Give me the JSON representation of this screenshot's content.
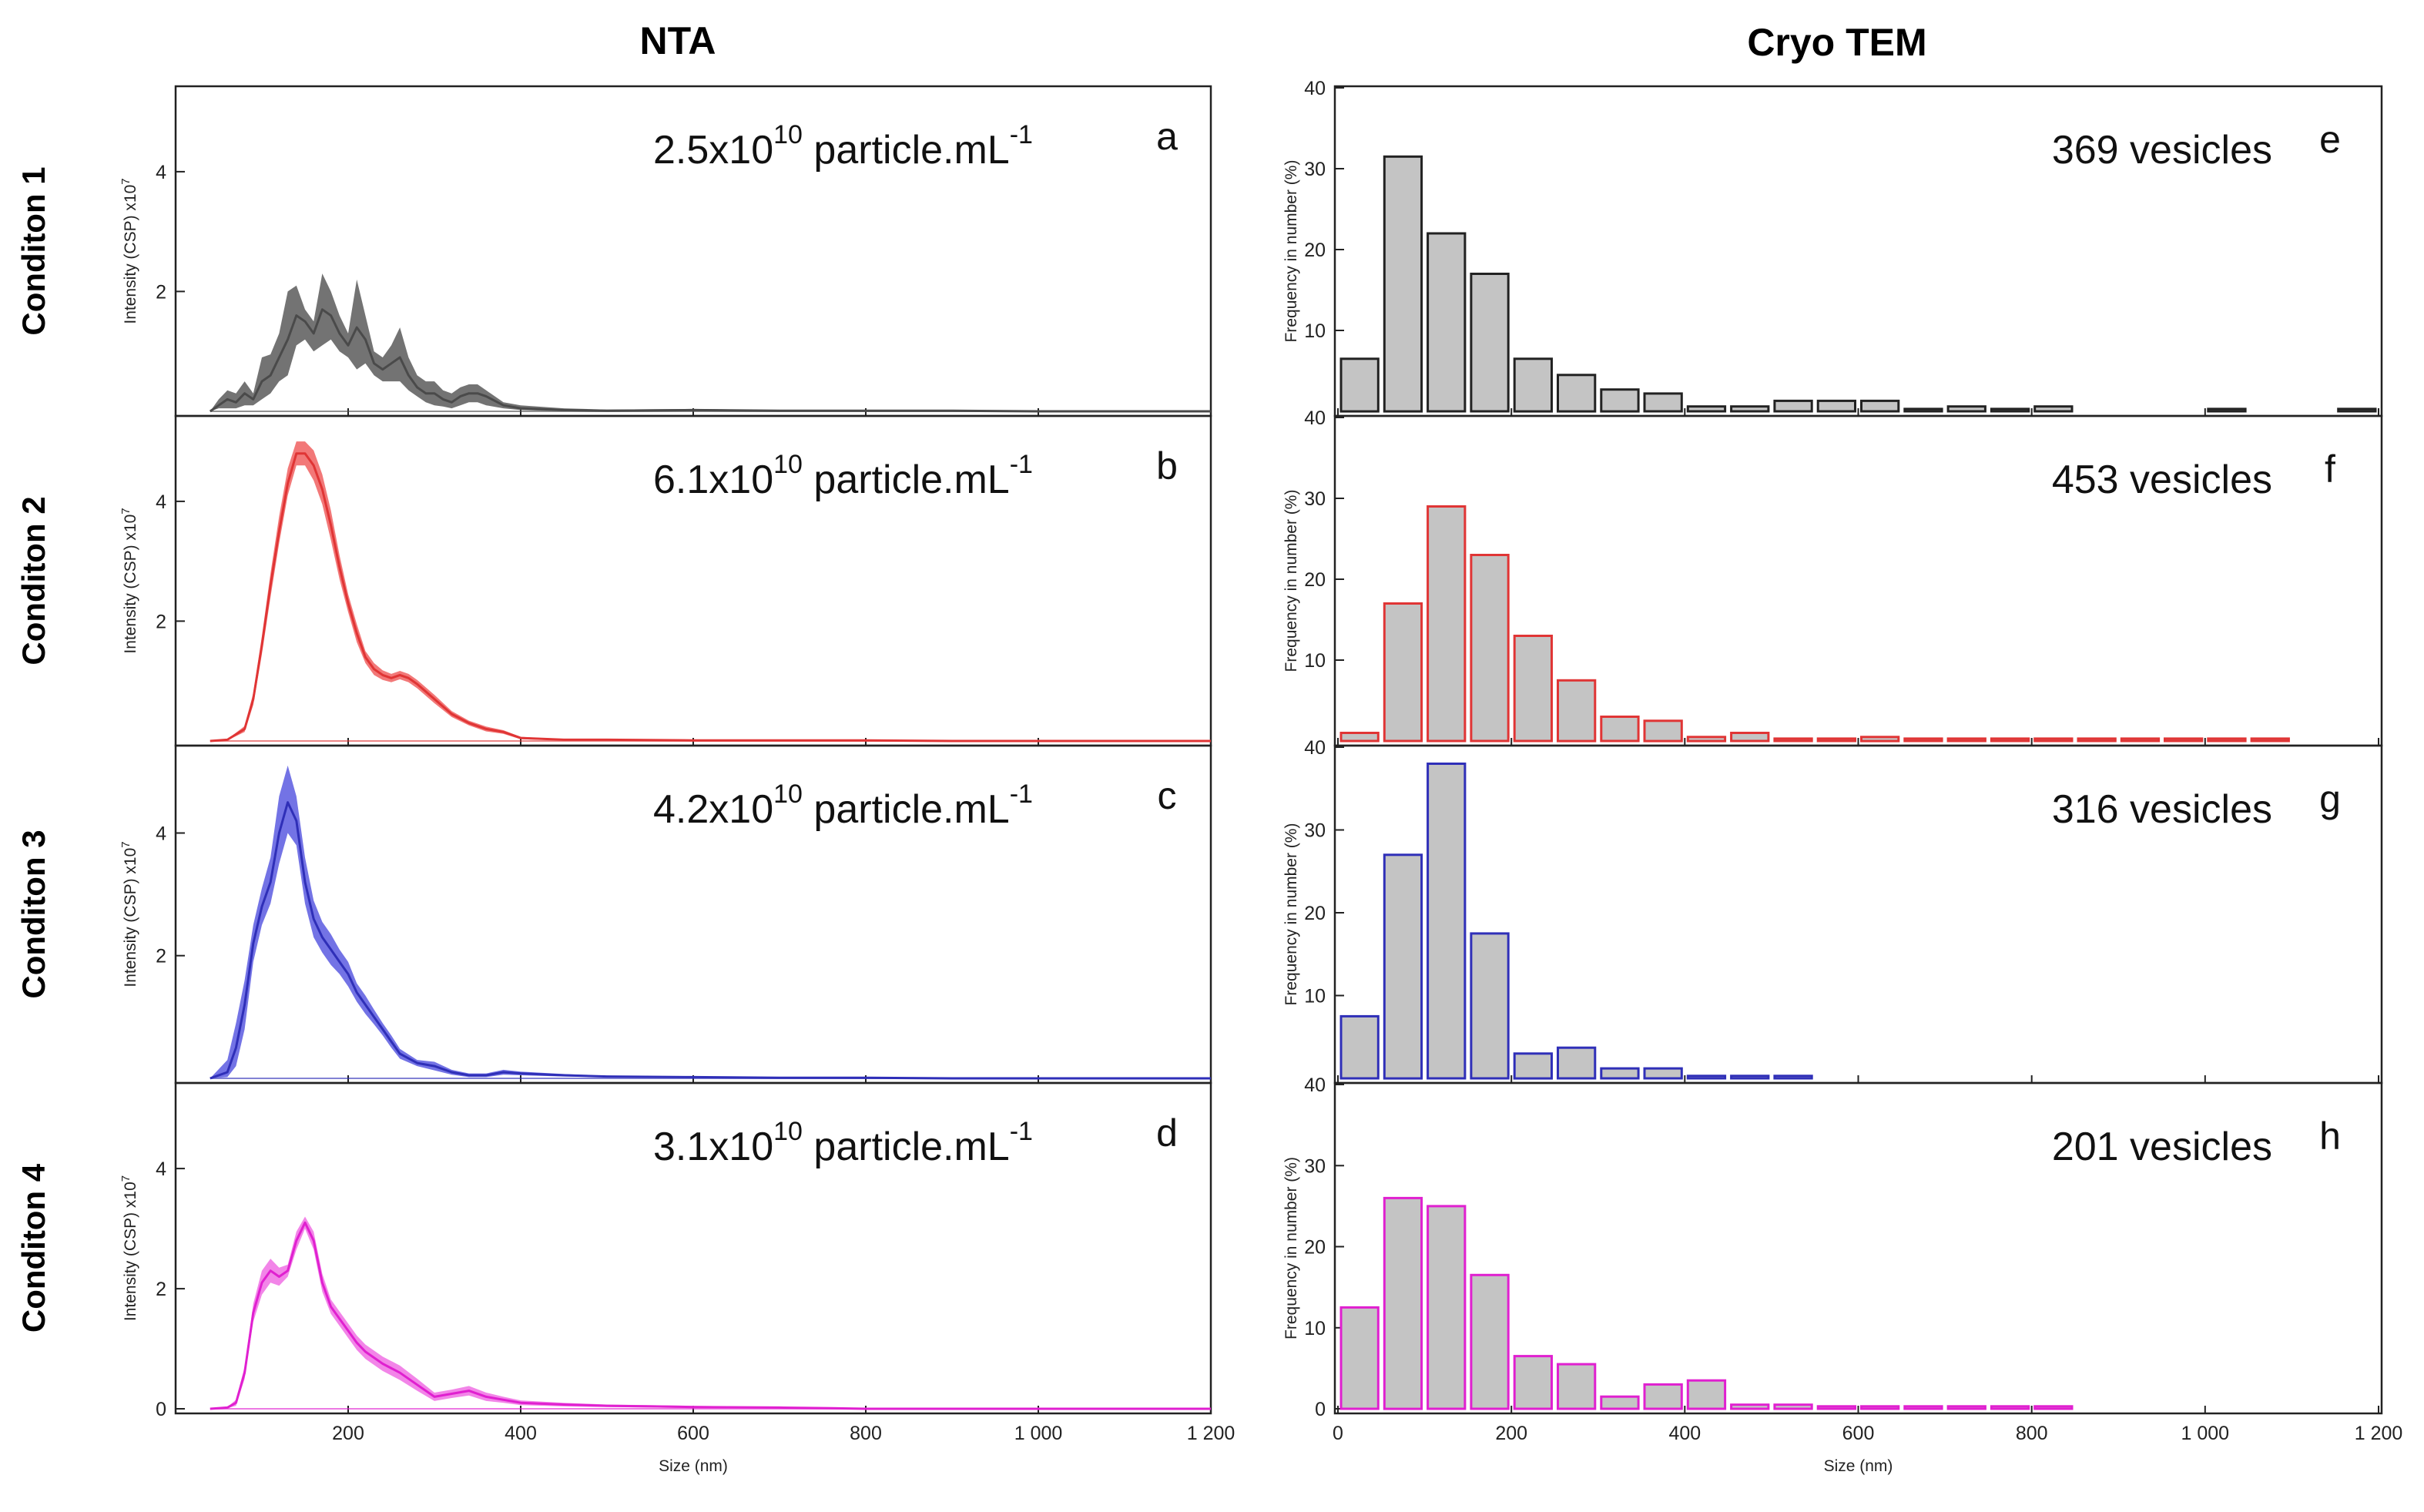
{
  "figure": {
    "col_titles": {
      "left": "NTA",
      "right": "Cryo TEM"
    },
    "row_labels": [
      "Conditon 1",
      "Conditon 2",
      "Conditon 3",
      "Conditon 4"
    ]
  },
  "chart_data": [
    {
      "type": "area",
      "panel": "a",
      "condition": "Conditon 1",
      "series_name": "NTA",
      "color": "#4a4a4a",
      "band_color": "#5a5a5a",
      "annotation": {
        "prefix": "2.5x10",
        "exponent": "10",
        "suffix": " particle.mL",
        "unit_exponent": "-1"
      },
      "xlabel": "Size (nm)",
      "ylabel": "Intensity (CSP) x10",
      "ylabel_exponent": "7",
      "xlim": [
        0,
        1200
      ],
      "ylim": [
        0,
        5.4
      ],
      "xticks": [
        200,
        400,
        600,
        800,
        1000,
        1200
      ],
      "xtick_labels": [
        "200",
        "400",
        "600",
        "800",
        "1 000",
        "1 200"
      ],
      "yticks": [
        2,
        4
      ],
      "ytick_labels": [
        "2",
        "4"
      ],
      "x": [
        40,
        50,
        60,
        70,
        80,
        90,
        100,
        110,
        120,
        130,
        140,
        150,
        160,
        170,
        180,
        190,
        200,
        210,
        220,
        230,
        240,
        250,
        260,
        270,
        280,
        290,
        300,
        310,
        320,
        330,
        340,
        350,
        360,
        380,
        400,
        450,
        500,
        600,
        700,
        800,
        900,
        1000,
        1200
      ],
      "y": [
        0,
        0.1,
        0.2,
        0.15,
        0.3,
        0.2,
        0.5,
        0.6,
        0.9,
        1.2,
        1.6,
        1.5,
        1.3,
        1.7,
        1.6,
        1.3,
        1.1,
        1.4,
        1.2,
        0.8,
        0.7,
        0.8,
        0.9,
        0.6,
        0.4,
        0.3,
        0.3,
        0.2,
        0.15,
        0.25,
        0.3,
        0.3,
        0.25,
        0.1,
        0.05,
        0.02,
        0.01,
        0.02,
        0.01,
        0.01,
        0.01,
        0,
        0
      ],
      "y_upper": [
        0,
        0.2,
        0.35,
        0.3,
        0.5,
        0.3,
        0.9,
        0.95,
        1.3,
        2.0,
        2.1,
        1.7,
        1.5,
        2.3,
        2.0,
        1.6,
        1.3,
        2.2,
        1.6,
        1.0,
        0.9,
        1.1,
        1.4,
        0.9,
        0.6,
        0.5,
        0.5,
        0.35,
        0.3,
        0.4,
        0.45,
        0.45,
        0.35,
        0.15,
        0.1,
        0.05,
        0.03,
        0.04,
        0.02,
        0.02,
        0.02,
        0.01,
        0
      ],
      "y_lower": [
        0,
        0.05,
        0.05,
        0.05,
        0.1,
        0.1,
        0.2,
        0.3,
        0.5,
        0.6,
        1.1,
        1.2,
        1.0,
        1.1,
        1.2,
        1.0,
        0.9,
        0.7,
        0.8,
        0.6,
        0.5,
        0.5,
        0.5,
        0.35,
        0.25,
        0.15,
        0.1,
        0.08,
        0.05,
        0.1,
        0.15,
        0.15,
        0.1,
        0.05,
        0.02,
        0,
        0,
        0,
        0,
        0,
        0,
        0,
        0
      ]
    },
    {
      "type": "area",
      "panel": "b",
      "condition": "Conditon 2",
      "series_name": "NTA",
      "color": "#e03535",
      "band_color": "#f06060",
      "annotation": {
        "prefix": "6.1x10",
        "exponent": "10",
        "suffix": " particle.mL",
        "unit_exponent": "-1"
      },
      "xlabel": "Size (nm)",
      "ylabel": "Intensity (CSP) x10",
      "ylabel_exponent": "7",
      "xlim": [
        0,
        1200
      ],
      "ylim": [
        0,
        5.4
      ],
      "xticks": [
        200,
        400,
        600,
        800,
        1000,
        1200
      ],
      "xtick_labels": [
        "200",
        "400",
        "600",
        "800",
        "1 000",
        "1 200"
      ],
      "yticks": [
        2,
        4
      ],
      "ytick_labels": [
        "2",
        "4"
      ],
      "x": [
        40,
        60,
        80,
        90,
        100,
        110,
        120,
        130,
        140,
        150,
        160,
        170,
        180,
        190,
        200,
        210,
        220,
        230,
        240,
        250,
        260,
        270,
        280,
        300,
        320,
        340,
        360,
        380,
        400,
        450,
        500,
        600,
        700,
        800,
        900,
        1000,
        1200
      ],
      "y": [
        0,
        0.02,
        0.2,
        0.7,
        1.6,
        2.6,
        3.5,
        4.3,
        4.8,
        4.8,
        4.6,
        4.2,
        3.6,
        2.9,
        2.3,
        1.8,
        1.4,
        1.2,
        1.1,
        1.05,
        1.1,
        1.05,
        0.95,
        0.7,
        0.45,
        0.3,
        0.2,
        0.15,
        0.05,
        0.02,
        0.02,
        0.01,
        0.01,
        0.01,
        0,
        0,
        0
      ],
      "y_upper": [
        0,
        0.03,
        0.25,
        0.8,
        1.75,
        2.8,
        3.75,
        4.55,
        5.0,
        5.0,
        4.85,
        4.45,
        3.85,
        3.1,
        2.45,
        1.95,
        1.5,
        1.3,
        1.18,
        1.12,
        1.17,
        1.12,
        1.02,
        0.77,
        0.5,
        0.34,
        0.24,
        0.18,
        0.07,
        0.03,
        0.03,
        0.02,
        0.02,
        0.01,
        0,
        0,
        0
      ],
      "y_lower": [
        0,
        0.01,
        0.15,
        0.6,
        1.45,
        2.4,
        3.3,
        4.1,
        4.6,
        4.6,
        4.35,
        3.95,
        3.35,
        2.7,
        2.15,
        1.65,
        1.3,
        1.1,
        1.02,
        0.98,
        1.03,
        0.98,
        0.88,
        0.63,
        0.4,
        0.26,
        0.16,
        0.12,
        0.03,
        0.01,
        0.01,
        0,
        0,
        0,
        0,
        0,
        0
      ]
    },
    {
      "type": "area",
      "panel": "c",
      "condition": "Conditon 3",
      "series_name": "NTA",
      "color": "#2f2fb8",
      "band_color": "#5a5ae0",
      "annotation": {
        "prefix": "4.2x10",
        "exponent": "10",
        "suffix": " particle.mL",
        "unit_exponent": "-1"
      },
      "xlabel": "Size (nm)",
      "ylabel": "Intensity (CSP) x10",
      "ylabel_exponent": "7",
      "xlim": [
        0,
        1200
      ],
      "ylim": [
        0,
        5.4
      ],
      "xticks": [
        200,
        400,
        600,
        800,
        1000,
        1200
      ],
      "xtick_labels": [
        "200",
        "400",
        "600",
        "800",
        "1 000",
        "1 200"
      ],
      "yticks": [
        2,
        4
      ],
      "ytick_labels": [
        "2",
        "4"
      ],
      "x": [
        40,
        60,
        70,
        80,
        90,
        100,
        110,
        120,
        130,
        140,
        150,
        160,
        170,
        180,
        190,
        200,
        210,
        220,
        230,
        240,
        250,
        260,
        280,
        300,
        320,
        340,
        360,
        380,
        400,
        450,
        500,
        600,
        700,
        800,
        900,
        1000,
        1200
      ],
      "y": [
        0,
        0.1,
        0.5,
        1.2,
        2.2,
        2.8,
        3.2,
        4.0,
        4.5,
        4.2,
        3.2,
        2.6,
        2.3,
        2.1,
        1.9,
        1.7,
        1.4,
        1.2,
        1.0,
        0.8,
        0.6,
        0.4,
        0.25,
        0.2,
        0.1,
        0.05,
        0.05,
        0.1,
        0.08,
        0.05,
        0.03,
        0.02,
        0.01,
        0.01,
        0,
        0,
        0
      ],
      "y_upper": [
        0,
        0.3,
        0.9,
        1.6,
        2.5,
        3.1,
        3.6,
        4.6,
        5.1,
        4.6,
        3.6,
        2.9,
        2.55,
        2.35,
        2.1,
        1.9,
        1.55,
        1.35,
        1.12,
        0.9,
        0.7,
        0.48,
        0.3,
        0.27,
        0.14,
        0.08,
        0.08,
        0.14,
        0.11,
        0.07,
        0.04,
        0.03,
        0.02,
        0.01,
        0,
        0,
        0
      ],
      "y_lower": [
        0,
        0.02,
        0.2,
        0.8,
        1.9,
        2.5,
        2.85,
        3.5,
        4.0,
        3.8,
        2.85,
        2.3,
        2.05,
        1.85,
        1.7,
        1.5,
        1.25,
        1.05,
        0.88,
        0.7,
        0.5,
        0.32,
        0.2,
        0.13,
        0.06,
        0.02,
        0.02,
        0.06,
        0.05,
        0.03,
        0.02,
        0.01,
        0,
        0,
        0,
        0,
        0
      ]
    },
    {
      "type": "area",
      "panel": "d",
      "condition": "Conditon 4",
      "series_name": "NTA",
      "color": "#e020d0",
      "band_color": "#f070e4",
      "annotation": {
        "prefix": "3.1x10",
        "exponent": "10",
        "suffix": " particle.mL",
        "unit_exponent": "-1"
      },
      "xlabel": "Size (nm)",
      "ylabel": "Intensity (CSP) x10",
      "ylabel_exponent": "7",
      "xlim": [
        0,
        1200
      ],
      "ylim": [
        0,
        5.4
      ],
      "xticks": [
        200,
        400,
        600,
        800,
        1000,
        1200
      ],
      "xtick_labels": [
        "200",
        "400",
        "600",
        "800",
        "1 000",
        "1 200"
      ],
      "yticks": [
        0,
        2,
        4
      ],
      "ytick_labels": [
        "0",
        "2",
        "4"
      ],
      "x": [
        40,
        60,
        70,
        80,
        90,
        100,
        110,
        120,
        130,
        140,
        150,
        160,
        170,
        180,
        190,
        200,
        210,
        220,
        240,
        260,
        280,
        300,
        320,
        340,
        360,
        380,
        400,
        450,
        500,
        550,
        600,
        700,
        760,
        800,
        1000,
        1200
      ],
      "y": [
        0,
        0.02,
        0.1,
        0.6,
        1.6,
        2.1,
        2.3,
        2.2,
        2.3,
        2.8,
        3.1,
        2.8,
        2.1,
        1.7,
        1.5,
        1.3,
        1.1,
        0.95,
        0.75,
        0.6,
        0.4,
        0.2,
        0.25,
        0.3,
        0.2,
        0.15,
        0.1,
        0.07,
        0.05,
        0.04,
        0.03,
        0.02,
        0.01,
        0,
        0,
        0
      ],
      "y_upper": [
        0,
        0.03,
        0.15,
        0.7,
        1.75,
        2.3,
        2.5,
        2.35,
        2.4,
        2.95,
        3.2,
        2.95,
        2.25,
        1.82,
        1.62,
        1.42,
        1.22,
        1.07,
        0.87,
        0.72,
        0.5,
        0.27,
        0.32,
        0.38,
        0.27,
        0.2,
        0.14,
        0.1,
        0.07,
        0.06,
        0.05,
        0.03,
        0.02,
        0,
        0,
        0
      ],
      "y_lower": [
        0,
        0.01,
        0.05,
        0.5,
        1.45,
        1.9,
        2.1,
        2.05,
        2.2,
        2.65,
        3.0,
        2.65,
        1.95,
        1.58,
        1.38,
        1.18,
        0.98,
        0.83,
        0.63,
        0.48,
        0.3,
        0.13,
        0.18,
        0.22,
        0.13,
        0.1,
        0.06,
        0.04,
        0.03,
        0.02,
        0.01,
        0.01,
        0,
        0,
        0,
        0
      ]
    },
    {
      "type": "bar",
      "panel": "e",
      "condition": "Conditon 1",
      "series_name": "Cryo TEM",
      "edge_color": "#222222",
      "fill_color": "#c4c4c4",
      "annotation": "369 vesicles",
      "xlabel": "Size (nm)",
      "ylabel": "Frequency in number (%)",
      "xlim": [
        0,
        1200
      ],
      "ylim": [
        0,
        40
      ],
      "bin_width": 50,
      "xticks": [
        0,
        200,
        400,
        600,
        800,
        1000,
        1200
      ],
      "xtick_labels": [
        "0",
        "200",
        "400",
        "600",
        "800",
        "1 000",
        "1 200"
      ],
      "yticks": [
        10,
        20,
        30,
        40
      ],
      "ytick_labels": [
        "10",
        "20",
        "30",
        "40"
      ],
      "bin_centers": [
        25,
        75,
        125,
        175,
        225,
        275,
        325,
        375,
        425,
        475,
        525,
        575,
        625,
        675,
        725,
        775,
        825,
        1025,
        1175
      ],
      "values": [
        6.5,
        31.5,
        22,
        17,
        6.5,
        4.5,
        2.7,
        2.2,
        0.6,
        0.6,
        1.3,
        1.3,
        1.3,
        0.3,
        0.6,
        0.3,
        0.6,
        0.3,
        0.3
      ]
    },
    {
      "type": "bar",
      "panel": "f",
      "condition": "Conditon 2",
      "series_name": "Cryo TEM",
      "edge_color": "#e03535",
      "fill_color": "#c4c4c4",
      "annotation": "453 vesicles",
      "xlabel": "Size (nm)",
      "ylabel": "Frequency in number (%)",
      "xlim": [
        0,
        1200
      ],
      "ylim": [
        0,
        40
      ],
      "bin_width": 50,
      "xticks": [
        0,
        200,
        400,
        600,
        800,
        1000,
        1200
      ],
      "xtick_labels": [
        "0",
        "200",
        "400",
        "600",
        "800",
        "1 000",
        "1 200"
      ],
      "yticks": [
        10,
        20,
        30,
        40
      ],
      "ytick_labels": [
        "10",
        "20",
        "30",
        "40"
      ],
      "bin_centers": [
        25,
        75,
        125,
        175,
        225,
        275,
        325,
        375,
        425,
        475,
        525,
        575,
        625,
        675,
        725,
        775,
        825,
        875,
        925,
        975,
        1025,
        1075
      ],
      "values": [
        1,
        17,
        29,
        23,
        13,
        7.5,
        3,
        2.5,
        0.5,
        1,
        0.3,
        0.3,
        0.5,
        0.3,
        0.3,
        0.3,
        0.3,
        0.3,
        0.3,
        0.3,
        0.3,
        0.3
      ]
    },
    {
      "type": "bar",
      "panel": "g",
      "condition": "Conditon 3",
      "series_name": "Cryo TEM",
      "edge_color": "#2f2fb8",
      "fill_color": "#c4c4c4",
      "annotation": "316 vesicles",
      "xlabel": "Size (nm)",
      "ylabel": "Frequency in number (%)",
      "xlim": [
        0,
        1200
      ],
      "ylim": [
        0,
        40
      ],
      "bin_width": 50,
      "xticks": [
        0,
        200,
        400,
        600,
        800,
        1000,
        1200
      ],
      "xtick_labels": [
        "0",
        "200",
        "400",
        "600",
        "800",
        "1 000",
        "1 200"
      ],
      "yticks": [
        10,
        20,
        30,
        40
      ],
      "ytick_labels": [
        "10",
        "20",
        "30",
        "40"
      ],
      "bin_centers": [
        25,
        75,
        125,
        175,
        225,
        275,
        325,
        375,
        425,
        475,
        525
      ],
      "values": [
        7.5,
        27,
        38,
        17.5,
        3,
        3.7,
        1.2,
        1.2,
        0.3,
        0.3,
        0.3
      ]
    },
    {
      "type": "bar",
      "panel": "h",
      "condition": "Conditon 4",
      "series_name": "Cryo TEM",
      "edge_color": "#e020d0",
      "fill_color": "#c4c4c4",
      "annotation": "201 vesicles",
      "xlabel": "Size (nm)",
      "ylabel": "Frequency in number (%)",
      "xlim": [
        0,
        1200
      ],
      "ylim": [
        0,
        40
      ],
      "bin_width": 50,
      "xticks": [
        0,
        200,
        400,
        600,
        800,
        1000,
        1200
      ],
      "xtick_labels": [
        "0",
        "200",
        "400",
        "600",
        "800",
        "1 000",
        "1 200"
      ],
      "yticks": [
        0,
        10,
        20,
        30,
        40
      ],
      "ytick_labels": [
        "0",
        "10",
        "20",
        "30",
        "40"
      ],
      "bin_centers": [
        25,
        75,
        125,
        175,
        225,
        275,
        325,
        375,
        425,
        475,
        525,
        575,
        625,
        675,
        725,
        775,
        825
      ],
      "values": [
        12.5,
        26,
        25,
        16.5,
        6.5,
        5.5,
        1.5,
        3,
        3.5,
        0.5,
        0.5,
        0.3,
        0.3,
        0.3,
        0.3,
        0.3,
        0.3
      ]
    }
  ]
}
